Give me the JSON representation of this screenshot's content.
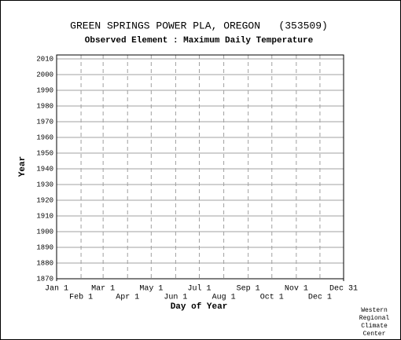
{
  "chart_data": {
    "type": "line",
    "title": "GREEN SPRINGS POWER PLA, OREGON   (353509)",
    "subtitle": "Observed Element : Maximum Daily Temperature",
    "x_label": "Day of Year",
    "y_label": "Year",
    "credit": [
      "Western",
      "Regional",
      "Climate",
      "Center"
    ],
    "xlim": [
      1,
      365
    ],
    "xticks": [
      {
        "value": 1,
        "label": "Jan 1"
      },
      {
        "value": 32,
        "label": "Feb 1"
      },
      {
        "value": 60,
        "label": "Mar 1"
      },
      {
        "value": 91,
        "label": "Apr 1"
      },
      {
        "value": 121,
        "label": "May 1"
      },
      {
        "value": 152,
        "label": "Jun 1"
      },
      {
        "value": 182,
        "label": "Jul 1"
      },
      {
        "value": 213,
        "label": "Aug 1"
      },
      {
        "value": 244,
        "label": "Sep 1"
      },
      {
        "value": 274,
        "label": "Oct 1"
      },
      {
        "value": 305,
        "label": "Nov 1"
      },
      {
        "value": 335,
        "label": "Dec 1"
      },
      {
        "value": 365,
        "label": "Dec 31"
      }
    ],
    "ylim": [
      1870,
      2012.5
    ],
    "yticks": [
      1870,
      1880,
      1890,
      1900,
      1910,
      1920,
      1930,
      1940,
      1950,
      1960,
      1970,
      1980,
      1990,
      2000,
      2010
    ],
    "grid": true
  }
}
